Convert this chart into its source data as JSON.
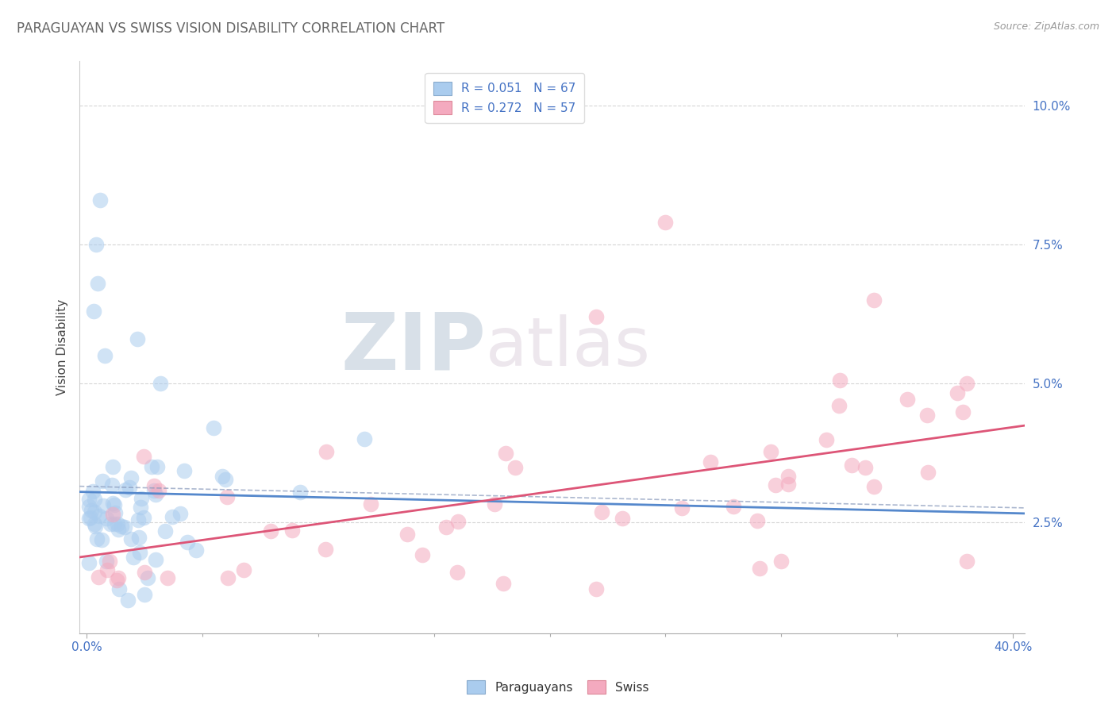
{
  "title": "PARAGUAYAN VS SWISS VISION DISABILITY CORRELATION CHART",
  "source": "Source: ZipAtlas.com",
  "ylabel": "Vision Disability",
  "y_tick_vals": [
    0.025,
    0.05,
    0.075,
    0.1
  ],
  "y_tick_labels": [
    "2.5%",
    "5.0%",
    "7.5%",
    "10.0%"
  ],
  "xlim": [
    -0.003,
    0.405
  ],
  "ylim": [
    0.005,
    0.108
  ],
  "legend_entry1": "R = 0.051   N = 67",
  "legend_entry2": "R = 0.272   N = 57",
  "color_blue_fill": "#AACCEE",
  "color_pink_fill": "#F4AABF",
  "color_blue_line": "#5588CC",
  "color_pink_line": "#DD5577",
  "watermark_zip": "ZIP",
  "watermark_atlas": "atlas",
  "title_color": "#666666",
  "source_color": "#999999",
  "tick_color": "#4472C4",
  "grid_color": "#CCCCCC"
}
